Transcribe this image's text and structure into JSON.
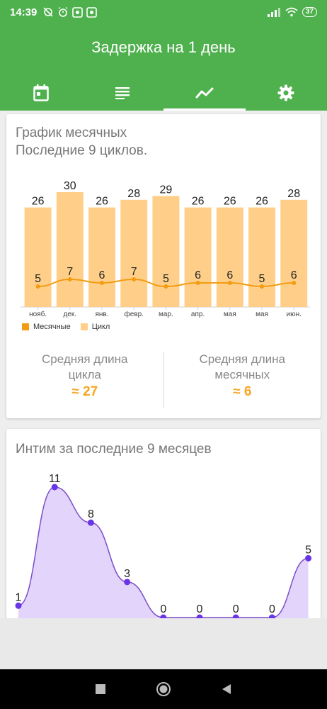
{
  "status": {
    "time": "14:39",
    "battery": "37"
  },
  "app": {
    "title": "Задержка на 1 день",
    "tabs": [
      {
        "icon": "calendar-icon"
      },
      {
        "icon": "list-icon"
      },
      {
        "icon": "chart-icon",
        "active": true
      },
      {
        "icon": "gear-icon"
      }
    ]
  },
  "card1": {
    "title_line1": "График месячных",
    "title_line2": "Последние 9 циклов.",
    "avg_cycle_label_1": "Средняя длина",
    "avg_cycle_label_2": "цикла",
    "avg_cycle_value": "≈ 27",
    "avg_period_label_1": "Средняя длина",
    "avg_period_label_2": "месячных",
    "avg_period_value": "≈ 6"
  },
  "card2": {
    "title": "Интим за последние 9 месяцев"
  },
  "chart_data": [
    {
      "type": "bar",
      "categories": [
        "нояб.",
        "дек.",
        "янв.",
        "февр.",
        "мар.",
        "апр.",
        "мая",
        "мая",
        "июн."
      ],
      "series": [
        {
          "name": "Цикл",
          "type": "bar",
          "values": [
            26,
            30,
            26,
            28,
            29,
            26,
            26,
            26,
            28
          ]
        },
        {
          "name": "Месячные",
          "type": "line",
          "values": [
            5,
            7,
            6,
            7,
            5,
            6,
            6,
            5,
            6
          ]
        }
      ],
      "colors": {
        "bar": "#ffcf8a",
        "line": "#f39c12"
      },
      "legend_position": "bottom-left"
    },
    {
      "type": "area",
      "values": [
        1,
        11,
        8,
        3,
        0,
        0,
        0,
        0,
        5
      ],
      "colors": {
        "fill": "#e2d4fb",
        "line": "#7c4dc8",
        "point": "#6a35e6"
      }
    }
  ]
}
